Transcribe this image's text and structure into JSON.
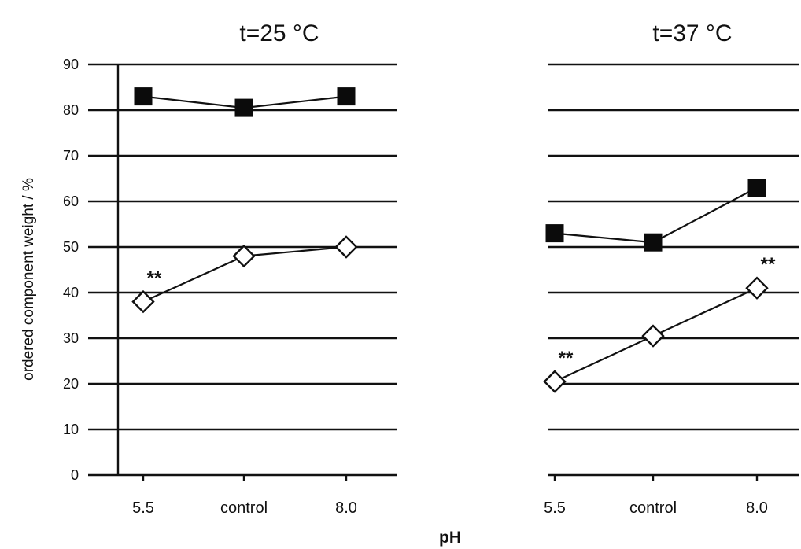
{
  "chart_data": [
    {
      "type": "line",
      "title": "t=25 °C",
      "categories": [
        "5.5",
        "control",
        "8.0"
      ],
      "series": [
        {
          "marker": "filled-square",
          "values": [
            83,
            80.5,
            83
          ]
        },
        {
          "marker": "open-diamond",
          "values": [
            38,
            48,
            50
          ]
        }
      ],
      "annotations": [
        {
          "text": "**",
          "category": "5.5",
          "series_index": 1
        }
      ],
      "ylim": [
        0,
        90
      ],
      "yticks": [
        0,
        10,
        20,
        30,
        40,
        50,
        60,
        70,
        80,
        90
      ],
      "ytick_labels": [
        "0",
        "10",
        "20",
        "30",
        "40",
        "50",
        "60",
        "70",
        "80",
        "90"
      ],
      "ylabel": "ordered component weight / %",
      "grid": "horizontal"
    },
    {
      "type": "line",
      "title": "t=37 °C",
      "categories": [
        "5.5",
        "control",
        "8.0"
      ],
      "series": [
        {
          "marker": "filled-square",
          "values": [
            53,
            51,
            63
          ]
        },
        {
          "marker": "open-diamond",
          "values": [
            20.5,
            30.5,
            41
          ]
        }
      ],
      "annotations": [
        {
          "text": "**",
          "category": "5.5",
          "series_index": 1
        },
        {
          "text": "**",
          "category": "8.0",
          "series_index": 1
        }
      ],
      "ylim": [
        0,
        90
      ],
      "grid": "horizontal"
    }
  ],
  "shared": {
    "xlabel": "pH"
  },
  "colors": {
    "ink": "#111111",
    "background": "#ffffff"
  }
}
